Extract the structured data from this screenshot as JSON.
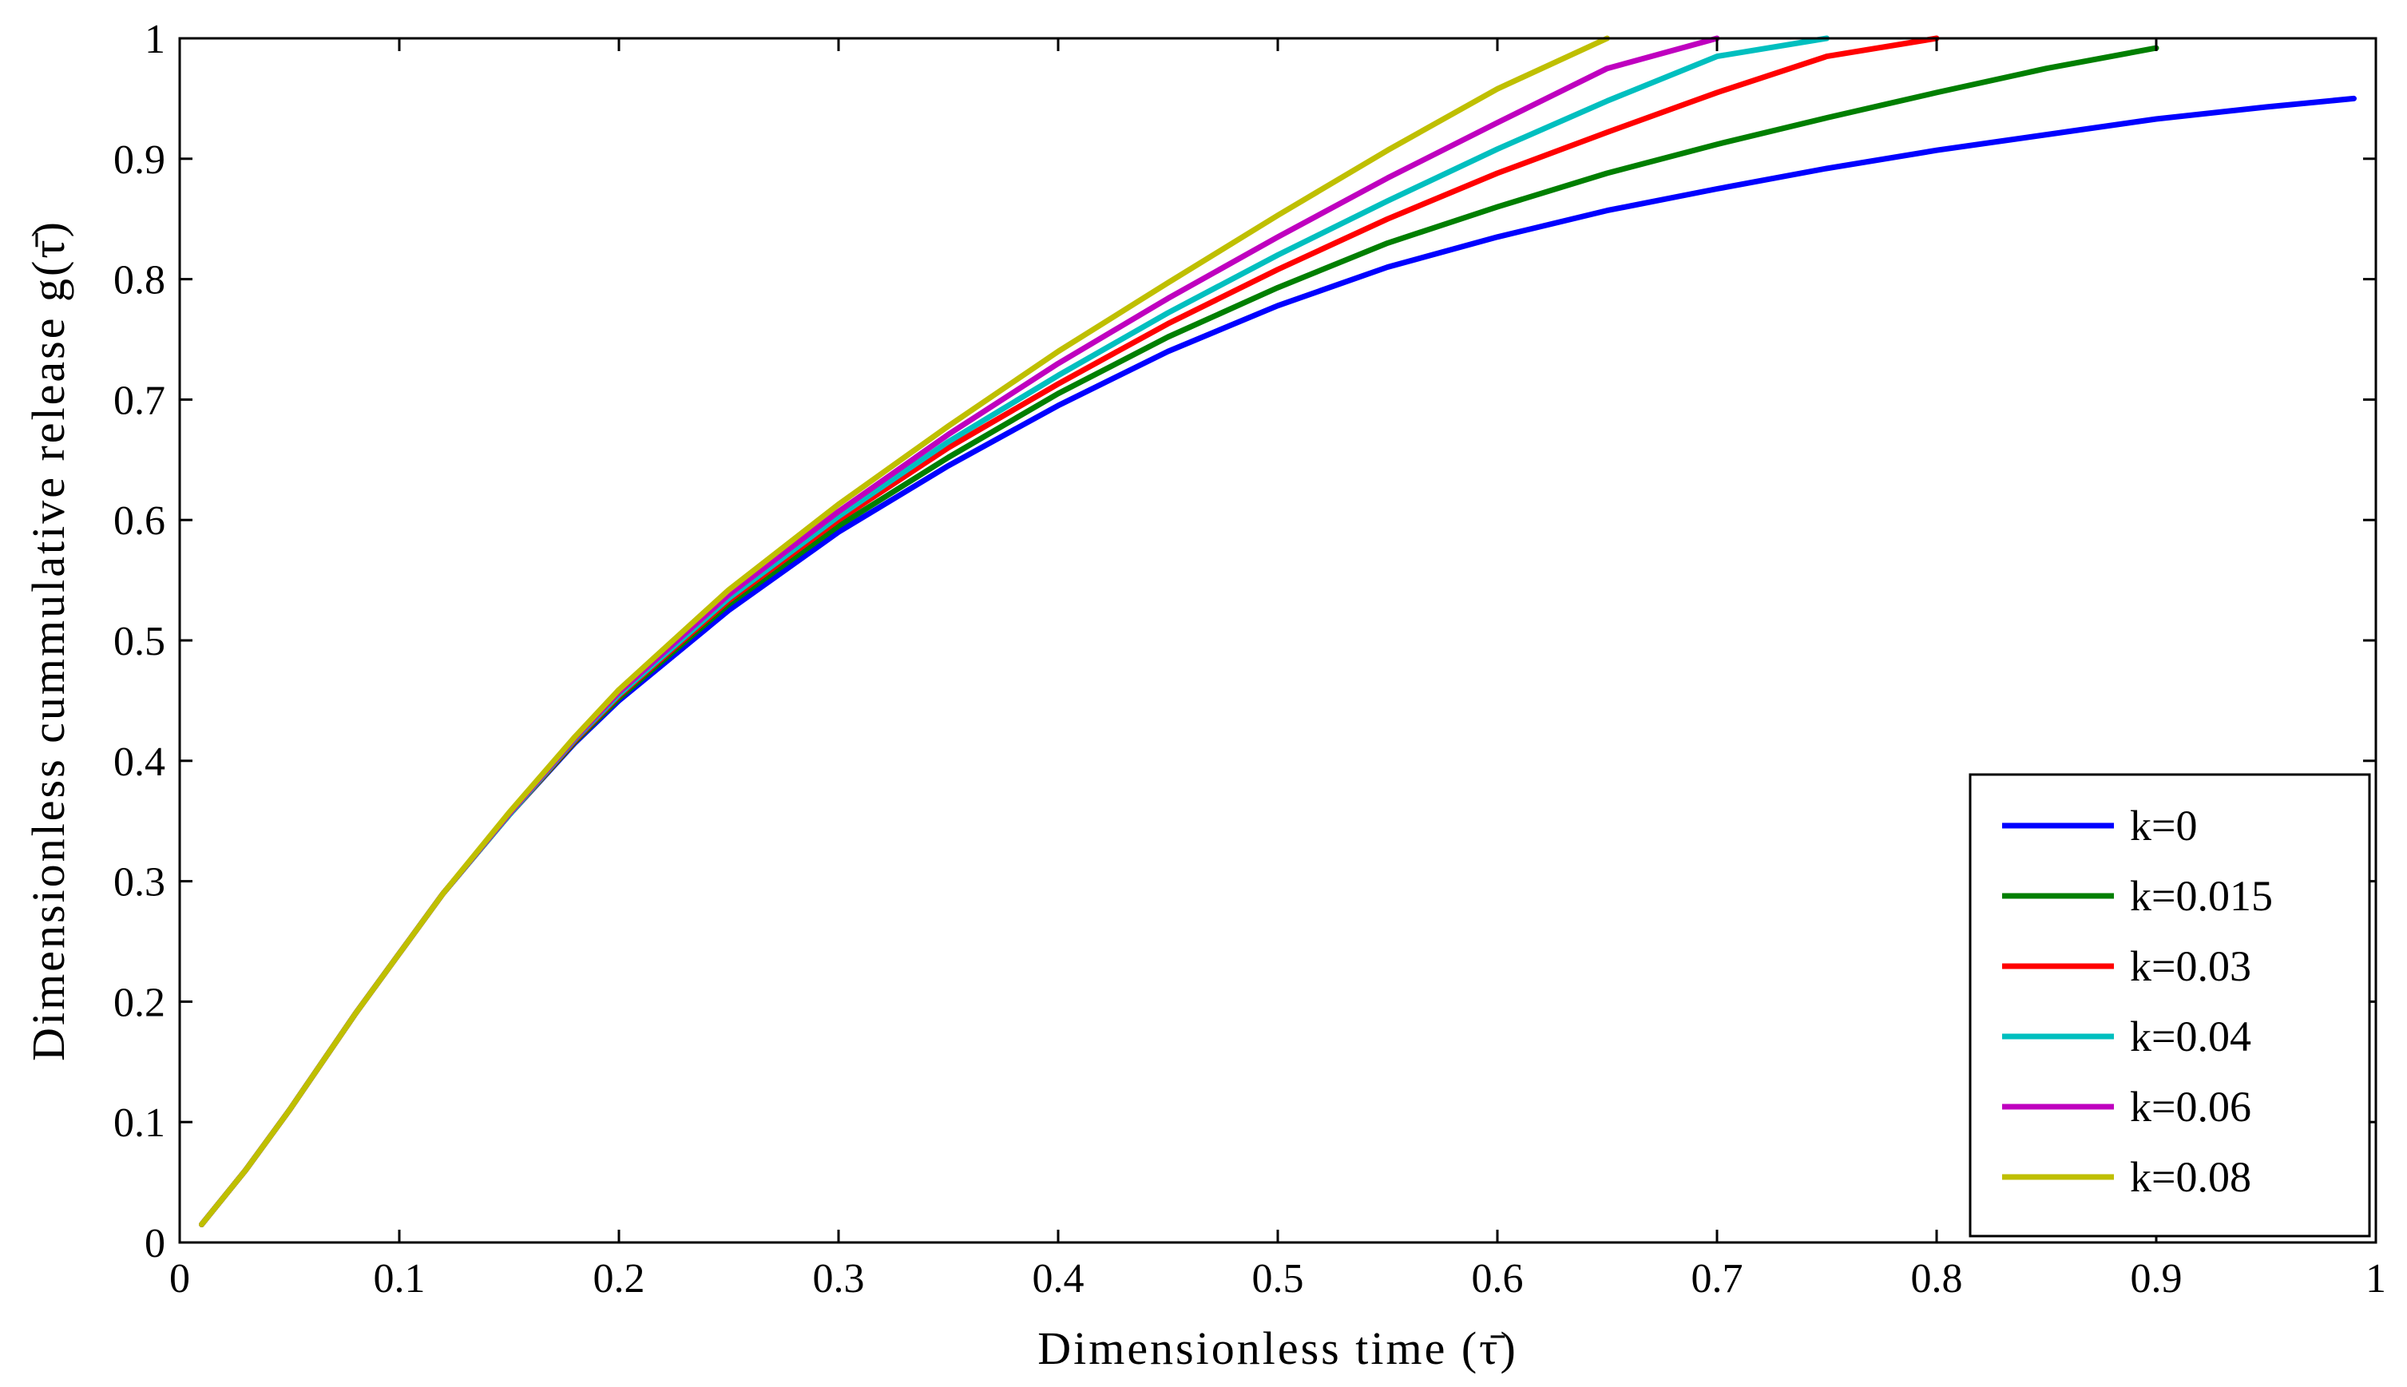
{
  "chart_data": {
    "type": "line",
    "xlabel": "Dimensionless time (τ̄)",
    "ylabel": "Dimensionless cummulative release g(τ̄)",
    "xlim": [
      0,
      1
    ],
    "ylim": [
      0,
      1
    ],
    "xticks": [
      "0",
      "0.1",
      "0.2",
      "0.3",
      "0.4",
      "0.5",
      "0.6",
      "0.7",
      "0.8",
      "0.9",
      "1"
    ],
    "yticks": [
      "0",
      "0.1",
      "0.2",
      "0.3",
      "0.4",
      "0.5",
      "0.6",
      "0.7",
      "0.8",
      "0.9",
      "1"
    ],
    "grid": false,
    "legend_position": "bottom-right",
    "x": [
      0.01,
      0.03,
      0.05,
      0.08,
      0.1,
      0.12,
      0.15,
      0.18,
      0.2,
      0.25,
      0.3,
      0.35,
      0.4,
      0.45,
      0.5,
      0.55,
      0.6,
      0.65,
      0.7,
      0.75,
      0.8,
      0.85,
      0.9,
      0.95,
      0.99
    ],
    "series": [
      {
        "name": "k=0",
        "color": "#0000ff",
        "values": [
          0.015,
          0.06,
          0.11,
          0.19,
          0.24,
          0.29,
          0.355,
          0.415,
          0.45,
          0.525,
          0.59,
          0.645,
          0.695,
          0.74,
          0.778,
          0.81,
          0.835,
          0.857,
          0.875,
          0.892,
          0.907,
          0.92,
          0.933,
          0.943,
          0.95
        ]
      },
      {
        "name": "k=0.015",
        "color": "#007f00",
        "values": [
          0.015,
          0.06,
          0.11,
          0.19,
          0.24,
          0.29,
          0.355,
          0.416,
          0.452,
          0.53,
          0.595,
          0.652,
          0.705,
          0.752,
          0.793,
          0.83,
          0.86,
          0.888,
          0.912,
          0.934,
          0.955,
          0.975,
          0.992,
          null,
          null
        ]
      },
      {
        "name": "k=0.03",
        "color": "#ff0000",
        "values": [
          0.015,
          0.06,
          0.11,
          0.19,
          0.24,
          0.29,
          0.355,
          0.417,
          0.454,
          0.533,
          0.6,
          0.66,
          0.713,
          0.763,
          0.808,
          0.85,
          0.888,
          0.922,
          0.955,
          0.985,
          1.0,
          null,
          null,
          null,
          null
        ]
      },
      {
        "name": "k=0.04",
        "color": "#00bfbf",
        "values": [
          0.015,
          0.06,
          0.11,
          0.19,
          0.24,
          0.29,
          0.355,
          0.418,
          0.455,
          0.535,
          0.603,
          0.665,
          0.72,
          0.772,
          0.82,
          0.865,
          0.908,
          0.948,
          0.985,
          1.0,
          null,
          null,
          null,
          null,
          null
        ]
      },
      {
        "name": "k=0.06",
        "color": "#bf00bf",
        "values": [
          0.015,
          0.06,
          0.11,
          0.19,
          0.24,
          0.29,
          0.356,
          0.419,
          0.457,
          0.538,
          0.607,
          0.671,
          0.73,
          0.784,
          0.835,
          0.884,
          0.93,
          0.975,
          1.0,
          null,
          null,
          null,
          null,
          null,
          null
        ]
      },
      {
        "name": "k=0.08",
        "color": "#bfbf00",
        "values": [
          0.015,
          0.06,
          0.11,
          0.19,
          0.24,
          0.29,
          0.357,
          0.42,
          0.459,
          0.542,
          0.613,
          0.678,
          0.74,
          0.797,
          0.853,
          0.907,
          0.958,
          1.0,
          null,
          null,
          null,
          null,
          null,
          null,
          null
        ]
      }
    ]
  }
}
